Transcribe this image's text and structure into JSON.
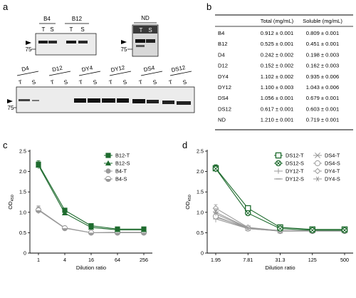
{
  "panels": {
    "a": "a",
    "b": "b",
    "c": "c",
    "d": "d"
  },
  "blots": {
    "top_left": {
      "groups": [
        "B4",
        "B12"
      ],
      "lanes": [
        "T",
        "S",
        "T",
        "S"
      ],
      "marker": "75"
    },
    "top_right": {
      "groups": [
        "ND"
      ],
      "lanes": [
        "T",
        "S"
      ],
      "marker": "75"
    },
    "bottom": {
      "groups": [
        "D4",
        "D12",
        "DY4",
        "DY12",
        "DS4",
        "DS12"
      ],
      "lanes": [
        "T",
        "S",
        "T",
        "S",
        "T",
        "S",
        "T",
        "S",
        "T",
        "S",
        "T",
        "S"
      ],
      "marker": "75"
    }
  },
  "table": {
    "headers": [
      "",
      "Total (mg/mL)",
      "Soluble (mg/mL)"
    ],
    "rows": [
      [
        "B4",
        "0.912 ± 0.001",
        "0.809 ± 0.001"
      ],
      [
        "B12",
        "0.525 ± 0.001",
        "0.451 ± 0.001"
      ],
      [
        "D4",
        "0.242 ± 0.002",
        "0.198 ± 0.003"
      ],
      [
        "D12",
        "0.152 ± 0.002",
        "0.162 ± 0.003"
      ],
      [
        "DY4",
        "1.102 ± 0.002",
        "0.935 ± 0.006"
      ],
      [
        "DY12",
        "1.100 ± 0.003",
        "1.043 ± 0.006"
      ],
      [
        "DS4",
        "1.056 ± 0.001",
        "0.679 ± 0.001"
      ],
      [
        "DS12",
        "0.617 ± 0.001",
        "0.603 ± 0.001"
      ],
      [
        "ND",
        "1.210 ± 0.001",
        "0.719 ± 0.001"
      ]
    ]
  },
  "colors": {
    "green": "#1e6b2e",
    "gray": "#9a9a9a",
    "band": "#111111",
    "blot_bg": "#ececec"
  },
  "chart_data": [
    {
      "panel": "c",
      "type": "line",
      "x": [
        "1",
        "4",
        "16",
        "64",
        "256"
      ],
      "xlabel": "Dilution ratio",
      "ylabel": "OD",
      "ylabel_sub": "450",
      "ylim": [
        0,
        2.5
      ],
      "yticks": [
        "0",
        "0.5",
        "1.0",
        "1.5",
        "2.0",
        "2.5"
      ],
      "legend_position": "top-right",
      "series": [
        {
          "name": "B12-T",
          "values": [
            2.18,
            1.05,
            0.67,
            0.59,
            0.59
          ],
          "color": "#1e6b2e",
          "marker": "square-filled"
        },
        {
          "name": "B12-S",
          "values": [
            2.15,
            0.98,
            0.63,
            0.57,
            0.57
          ],
          "color": "#1e6b2e",
          "marker": "triangle-filled"
        },
        {
          "name": "B4-T",
          "values": [
            1.07,
            0.62,
            0.5,
            0.51,
            0.51
          ],
          "color": "#9a9a9a",
          "marker": "circle-filled"
        },
        {
          "name": "B4-S",
          "values": [
            1.05,
            0.61,
            0.5,
            0.5,
            0.5
          ],
          "color": "#9a9a9a",
          "marker": "circle-half"
        }
      ]
    },
    {
      "panel": "d",
      "type": "line",
      "x": [
        "1.95",
        "7.81",
        "31.3",
        "125",
        "500"
      ],
      "xlabel": "Dilution ratio",
      "ylabel": "OD",
      "ylabel_sub": "450",
      "ylim": [
        0,
        2.5
      ],
      "yticks": [
        "0",
        "0.5",
        "1.0",
        "1.5",
        "2.0",
        "2.5"
      ],
      "legend_position": "top-right",
      "series": [
        {
          "name": "DS12-T",
          "values": [
            2.08,
            1.1,
            0.63,
            0.58,
            0.58
          ],
          "color": "#1e6b2e",
          "marker": "square-open"
        },
        {
          "name": "DS12-S",
          "values": [
            2.07,
            0.98,
            0.6,
            0.56,
            0.56
          ],
          "color": "#1e6b2e",
          "marker": "circle-cross"
        },
        {
          "name": "DY12-T",
          "values": [
            0.88,
            0.62,
            0.55,
            0.55,
            0.55
          ],
          "color": "#9a9a9a",
          "marker": "plus"
        },
        {
          "name": "DY12-S",
          "values": [
            0.84,
            0.6,
            0.54,
            0.54,
            0.54
          ],
          "color": "#9a9a9a",
          "marker": "minus"
        },
        {
          "name": "DS4-T",
          "values": [
            0.96,
            0.61,
            0.55,
            0.55,
            0.55
          ],
          "color": "#9a9a9a",
          "marker": "x"
        },
        {
          "name": "DS4-S",
          "values": [
            0.9,
            0.6,
            0.54,
            0.54,
            0.54
          ],
          "color": "#9a9a9a",
          "marker": "circle-open"
        },
        {
          "name": "DY4-T",
          "values": [
            1.1,
            0.63,
            0.55,
            0.55,
            0.55
          ],
          "color": "#9a9a9a",
          "marker": "diamond-open"
        },
        {
          "name": "DY4-S",
          "values": [
            1.0,
            0.62,
            0.55,
            0.55,
            0.55
          ],
          "color": "#9a9a9a",
          "marker": "asterisk"
        }
      ]
    }
  ]
}
